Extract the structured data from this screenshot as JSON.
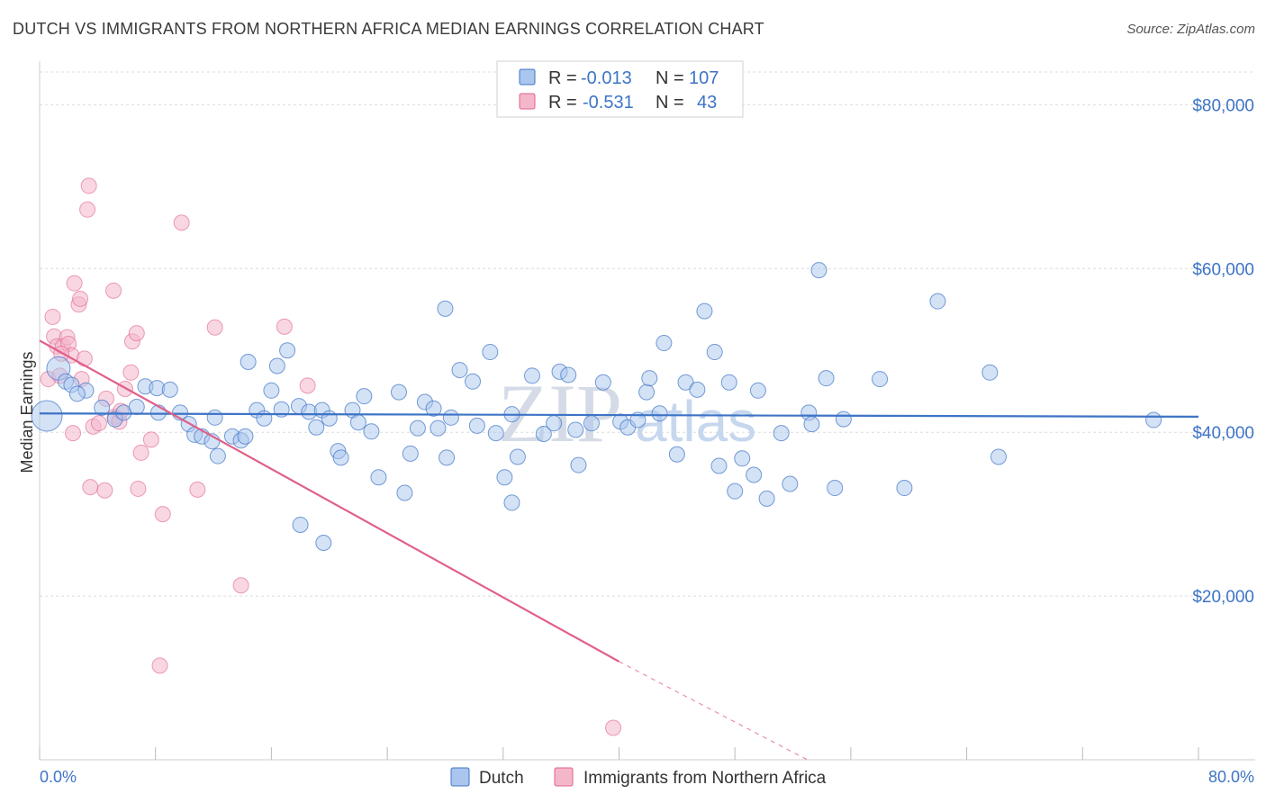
{
  "title": "DUTCH VS IMMIGRANTS FROM NORTHERN AFRICA MEDIAN EARNINGS CORRELATION CHART",
  "source": "Source: ZipAtlas.com",
  "watermark": {
    "zip": "ZIP",
    "atlas": "atlas"
  },
  "colors": {
    "dutch": "#3d74c6",
    "dutch_fill": "#aac6ee",
    "africa": "#e0608a",
    "africa_fill": "#f4b7ca",
    "tick": "#3d74c6"
  },
  "legend": {
    "rows": [
      {
        "r_label": "R = ",
        "r_value": "-0.013",
        "n_label": "N = ",
        "n_value": "107"
      },
      {
        "r_label": "R = ",
        "r_value": "-0.531",
        "n_label": "N = ",
        "n_value": "43"
      }
    ]
  },
  "chart_data": {
    "type": "scatter",
    "title": "DUTCH VS IMMIGRANTS FROM NORTHERN AFRICA MEDIAN EARNINGS CORRELATION CHART",
    "xlabel": "",
    "ylabel": "Median Earnings",
    "xlim": [
      0,
      80
    ],
    "ylim": [
      0,
      84000
    ],
    "x_tick_labels": [
      "0.0%",
      "80.0%"
    ],
    "y_ticks": [
      20000,
      40000,
      60000,
      80000
    ],
    "y_tick_labels": [
      "$20,000",
      "$40,000",
      "$60,000",
      "$80,000"
    ],
    "grid": true,
    "legend_position": "top-center",
    "series": [
      {
        "name": "Dutch",
        "color": "#3d74c6",
        "trend": {
          "x0": 0,
          "y0": 42300,
          "x1": 80,
          "y1": 41900
        },
        "points": [
          [
            0.5,
            42000
          ],
          [
            1.3,
            47800
          ],
          [
            1.8,
            46200
          ],
          [
            2.2,
            45800
          ],
          [
            3.2,
            45100
          ],
          [
            2.6,
            44700
          ],
          [
            4.3,
            43000
          ],
          [
            5.2,
            41600
          ],
          [
            5.8,
            42400
          ],
          [
            6.7,
            43100
          ],
          [
            7.3,
            45600
          ],
          [
            8.1,
            45400
          ],
          [
            9.0,
            45200
          ],
          [
            8.2,
            42400
          ],
          [
            9.7,
            42400
          ],
          [
            10.3,
            41000
          ],
          [
            10.7,
            39700
          ],
          [
            11.2,
            39500
          ],
          [
            11.9,
            38900
          ],
          [
            12.1,
            41800
          ],
          [
            12.3,
            37100
          ],
          [
            13.3,
            39500
          ],
          [
            13.9,
            39000
          ],
          [
            14.2,
            39500
          ],
          [
            14.4,
            48600
          ],
          [
            15.0,
            42700
          ],
          [
            15.5,
            41700
          ],
          [
            16.0,
            45100
          ],
          [
            16.4,
            48100
          ],
          [
            16.7,
            42800
          ],
          [
            17.1,
            50000
          ],
          [
            17.9,
            43200
          ],
          [
            18.6,
            42500
          ],
          [
            19.1,
            40600
          ],
          [
            19.5,
            42700
          ],
          [
            20.0,
            41700
          ],
          [
            20.6,
            37700
          ],
          [
            20.8,
            36900
          ],
          [
            21.6,
            42700
          ],
          [
            22.0,
            41200
          ],
          [
            22.4,
            44400
          ],
          [
            22.9,
            40100
          ],
          [
            23.4,
            34500
          ],
          [
            24.8,
            44900
          ],
          [
            25.2,
            32600
          ],
          [
            25.6,
            37400
          ],
          [
            26.1,
            40500
          ],
          [
            26.6,
            43700
          ],
          [
            27.2,
            42900
          ],
          [
            27.5,
            40500
          ],
          [
            28.1,
            36900
          ],
          [
            28.4,
            41800
          ],
          [
            29.0,
            47600
          ],
          [
            29.9,
            46200
          ],
          [
            30.2,
            40800
          ],
          [
            31.1,
            49800
          ],
          [
            31.5,
            39900
          ],
          [
            32.1,
            34500
          ],
          [
            32.6,
            31400
          ],
          [
            33.0,
            37000
          ],
          [
            34.0,
            46900
          ],
          [
            34.8,
            39800
          ],
          [
            35.5,
            41100
          ],
          [
            35.9,
            47400
          ],
          [
            36.5,
            47000
          ],
          [
            37.0,
            40300
          ],
          [
            38.1,
            41100
          ],
          [
            38.9,
            46100
          ],
          [
            40.1,
            41300
          ],
          [
            40.6,
            40600
          ],
          [
            41.3,
            41500
          ],
          [
            41.9,
            44900
          ],
          [
            42.1,
            46600
          ],
          [
            42.8,
            42300
          ],
          [
            43.1,
            50900
          ],
          [
            44.0,
            37300
          ],
          [
            44.6,
            46100
          ],
          [
            45.4,
            45200
          ],
          [
            45.9,
            54800
          ],
          [
            46.6,
            49800
          ],
          [
            46.9,
            35900
          ],
          [
            47.6,
            46100
          ],
          [
            48.0,
            32800
          ],
          [
            48.5,
            36800
          ],
          [
            49.3,
            34800
          ],
          [
            49.6,
            45100
          ],
          [
            50.2,
            31900
          ],
          [
            51.2,
            39900
          ],
          [
            51.8,
            33700
          ],
          [
            53.1,
            42400
          ],
          [
            53.3,
            41000
          ],
          [
            53.8,
            59800
          ],
          [
            54.3,
            46600
          ],
          [
            54.9,
            33200
          ],
          [
            55.5,
            41600
          ],
          [
            58.0,
            46500
          ],
          [
            59.7,
            33200
          ],
          [
            62.0,
            56000
          ],
          [
            65.6,
            47300
          ],
          [
            66.2,
            37000
          ],
          [
            76.9,
            41500
          ],
          [
            32.6,
            42200
          ],
          [
            37.2,
            36000
          ],
          [
            28.0,
            55100
          ],
          [
            18.0,
            28700
          ],
          [
            19.6,
            26500
          ]
        ]
      },
      {
        "name": "Immigrants from Northern Africa",
        "color": "#e0608a",
        "trend": {
          "x0": 0,
          "y0": 51200,
          "x1": 40,
          "y1": 12000,
          "dash_to_x": 53,
          "dash_to_y": 0
        },
        "points": [
          [
            0.6,
            46500
          ],
          [
            0.9,
            54100
          ],
          [
            1.0,
            51700
          ],
          [
            1.2,
            50500
          ],
          [
            1.4,
            46900
          ],
          [
            1.6,
            50500
          ],
          [
            1.9,
            51600
          ],
          [
            2.0,
            50800
          ],
          [
            2.2,
            49400
          ],
          [
            2.3,
            39900
          ],
          [
            2.4,
            58200
          ],
          [
            2.7,
            55600
          ],
          [
            2.8,
            56300
          ],
          [
            3.1,
            49000
          ],
          [
            3.3,
            67200
          ],
          [
            3.4,
            70100
          ],
          [
            3.5,
            33300
          ],
          [
            3.7,
            40700
          ],
          [
            4.5,
            32900
          ],
          [
            4.6,
            44100
          ],
          [
            5.1,
            57300
          ],
          [
            5.2,
            41900
          ],
          [
            5.5,
            41300
          ],
          [
            5.6,
            42600
          ],
          [
            5.9,
            45300
          ],
          [
            6.3,
            47300
          ],
          [
            6.4,
            51100
          ],
          [
            6.7,
            52100
          ],
          [
            6.8,
            33100
          ],
          [
            7.0,
            37500
          ],
          [
            7.7,
            39100
          ],
          [
            8.5,
            30000
          ],
          [
            9.8,
            65600
          ],
          [
            10.9,
            33000
          ],
          [
            12.1,
            52800
          ],
          [
            13.9,
            21300
          ],
          [
            16.9,
            52900
          ],
          [
            18.5,
            45700
          ],
          [
            8.3,
            11500
          ],
          [
            39.6,
            3900
          ],
          [
            4.1,
            41100
          ],
          [
            1.5,
            49600
          ],
          [
            2.9,
            46500
          ]
        ]
      }
    ]
  },
  "bottom_legend": {
    "items": [
      "Dutch",
      "Immigrants from Northern Africa"
    ]
  }
}
